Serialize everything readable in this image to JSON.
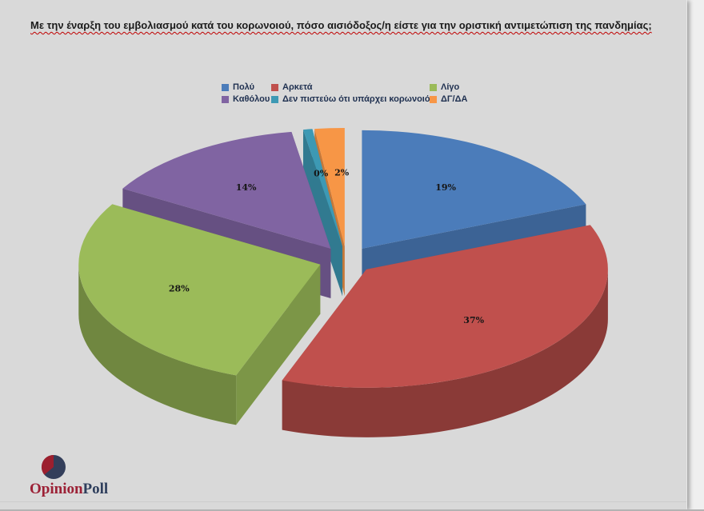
{
  "page": {
    "question_title": "Με την έναρξη του εμβολιασμού κατά του κορωνοιού, πόσο αισιόδοξος/η είστε για την οριστική αντιμετώπιση της πανδημίας;"
  },
  "legend": {
    "items": [
      {
        "label": "Πολύ"
      },
      {
        "label": "Αρκετά"
      },
      {
        "label": "Λίγο"
      },
      {
        "label": "Καθόλου"
      },
      {
        "label": "Δεν πιστεύω ότι υπάρχει κορωνοιός"
      },
      {
        "label": "ΔΓ/ΔΑ"
      }
    ]
  },
  "chart_data": {
    "type": "pie",
    "style": "3d-exploded",
    "title": "Με την έναρξη του εμβολιασμού κατά του κορωνοιού, πόσο αισιόδοξος/η είστε για την οριστική αντιμετώπιση της πανδημίας;",
    "categories": [
      "Πολύ",
      "Αρκετά",
      "Λίγο",
      "Καθόλου",
      "Δεν πιστεύω ότι υπάρχει κορωνοιός",
      "ΔΓ/ΔΑ"
    ],
    "values": [
      19,
      37,
      28,
      14,
      0,
      2
    ],
    "labels": [
      "19%",
      "37%",
      "28%",
      "14%",
      "0%",
      "2%"
    ],
    "colors": [
      "#4b7cba",
      "#c0504d",
      "#9bbb59",
      "#8064a2",
      "#3d99b4",
      "#f79646"
    ],
    "legend_position": "top",
    "start_angle_deg": 0,
    "direction": "clockwise"
  },
  "branding": {
    "name_primary": "Opinion",
    "name_secondary": "Poll",
    "color_primary": "#9c2136",
    "color_secondary": "#2e3e5c",
    "logo_circle_color": "#333e5a",
    "logo_wedge_color": "#9c1f2e"
  }
}
